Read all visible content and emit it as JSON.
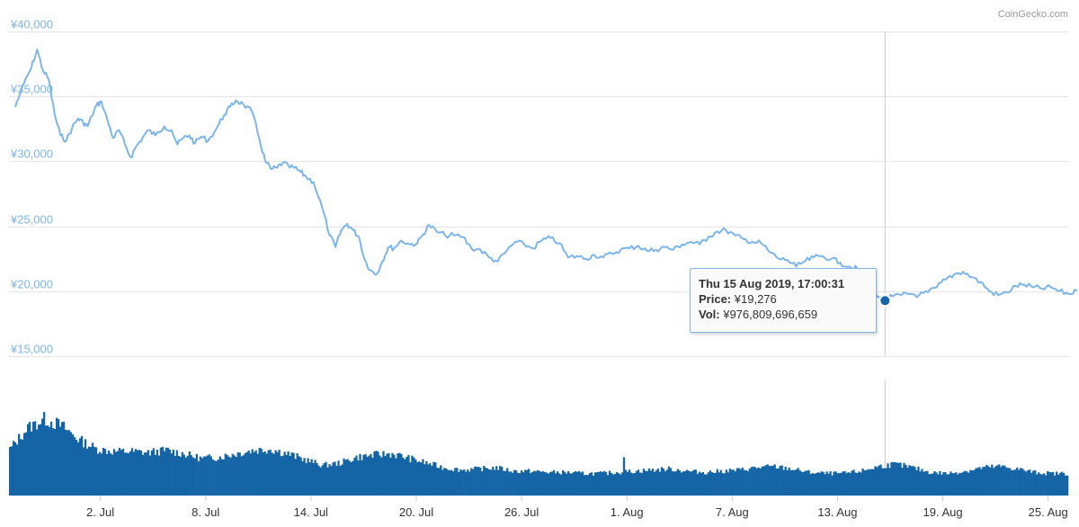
{
  "watermark": "CoinGecko.com",
  "tooltip": {
    "date": "Thu 15 Aug 2019, 17:00:31",
    "price_label": "Price:",
    "price_value": "¥19,276",
    "vol_label": "Vol:",
    "vol_value": "¥976,809,696,659"
  },
  "colors": {
    "price_line": "#7cb5ec",
    "volume": "#1565a6",
    "grid": "#e6e6e6",
    "axis_label": "#7cb5ec",
    "tick_label": "#333333",
    "crosshair": "#cccccc",
    "marker": "#1565a6"
  },
  "chart_data": [
    {
      "type": "line",
      "name": "price",
      "x_start": "27 Jun 2019",
      "x_end": "26 Aug 2019",
      "ylim": [
        15000,
        40000
      ],
      "yticks": [
        "¥15,000",
        "¥20,000",
        "¥25,000",
        "¥30,000",
        "¥35,000",
        "¥40,000"
      ],
      "ytick_values": [
        15000,
        20000,
        25000,
        30000,
        35000,
        40000
      ],
      "grid": true,
      "points": [
        [
          "27 Jun",
          34200
        ],
        [
          "27 Jun",
          36000
        ],
        [
          "28 Jun",
          37200
        ],
        [
          "28 Jun",
          38600
        ],
        [
          "28 Jun",
          37000
        ],
        [
          "29 Jun",
          36300
        ],
        [
          "29 Jun",
          33600
        ],
        [
          "29 Jun",
          32000
        ],
        [
          "30 Jun",
          31600
        ],
        [
          "30 Jun",
          32600
        ],
        [
          "30 Jun",
          33300
        ],
        [
          "1 Jul",
          33000
        ],
        [
          "1 Jul",
          32700
        ],
        [
          "1 Jul",
          33500
        ],
        [
          "1 Jul",
          34300
        ],
        [
          "2 Jul",
          34600
        ],
        [
          "2 Jul",
          33200
        ],
        [
          "2 Jul",
          31800
        ],
        [
          "3 Jul",
          32400
        ],
        [
          "3 Jul",
          31300
        ],
        [
          "3 Jul",
          30300
        ],
        [
          "4 Jul",
          31200
        ],
        [
          "4 Jul",
          31800
        ],
        [
          "4 Jul",
          32400
        ],
        [
          "5 Jul",
          32000
        ],
        [
          "5 Jul",
          32700
        ],
        [
          "6 Jul",
          32400
        ],
        [
          "6 Jul",
          31300
        ],
        [
          "6 Jul",
          31800
        ],
        [
          "7 Jul",
          32000
        ],
        [
          "7 Jul",
          31400
        ],
        [
          "7 Jul",
          31900
        ],
        [
          "8 Jul",
          31600
        ],
        [
          "8 Jul",
          32600
        ],
        [
          "9 Jul",
          33600
        ],
        [
          "9 Jul",
          34200
        ],
        [
          "9 Jul",
          34700
        ],
        [
          "10 Jul",
          34400
        ],
        [
          "10 Jul",
          33800
        ],
        [
          "11 Jul",
          31700
        ],
        [
          "11 Jul",
          30000
        ],
        [
          "11 Jul",
          29400
        ],
        [
          "12 Jul",
          29500
        ],
        [
          "12 Jul",
          29900
        ],
        [
          "12 Jul",
          29600
        ],
        [
          "13 Jul",
          29500
        ],
        [
          "13 Jul",
          29200
        ],
        [
          "13 Jul",
          28800
        ],
        [
          "14 Jul",
          28400
        ],
        [
          "14 Jul",
          26400
        ],
        [
          "15 Jul",
          24300
        ],
        [
          "15 Jul",
          23400
        ],
        [
          "15 Jul",
          24700
        ],
        [
          "16 Jul",
          25200
        ],
        [
          "16 Jul",
          24700
        ],
        [
          "16 Jul",
          24200
        ],
        [
          "17 Jul",
          22400
        ],
        [
          "17 Jul",
          21600
        ],
        [
          "17 Jul",
          21300
        ],
        [
          "18 Jul",
          22300
        ],
        [
          "18 Jul",
          23400
        ],
        [
          "18 Jul",
          23300
        ],
        [
          "19 Jul",
          23900
        ],
        [
          "19 Jul",
          23600
        ],
        [
          "20 Jul",
          23700
        ],
        [
          "20 Jul",
          24400
        ],
        [
          "20 Jul",
          25100
        ],
        [
          "21 Jul",
          24600
        ],
        [
          "21 Jul",
          24300
        ],
        [
          "22 Jul",
          24300
        ],
        [
          "22 Jul",
          24200
        ],
        [
          "23 Jul",
          23300
        ],
        [
          "23 Jul",
          23200
        ],
        [
          "24 Jul",
          22600
        ],
        [
          "24 Jul",
          22300
        ],
        [
          "25 Jul",
          23100
        ],
        [
          "25 Jul",
          23800
        ],
        [
          "26 Jul",
          23600
        ],
        [
          "26 Jul",
          23300
        ],
        [
          "27 Jul",
          23900
        ],
        [
          "27 Jul",
          24100
        ],
        [
          "28 Jul",
          23700
        ],
        [
          "28 Jul",
          22600
        ],
        [
          "29 Jul",
          22700
        ],
        [
          "29 Jul",
          22500
        ],
        [
          "30 Jul",
          22800
        ],
        [
          "30 Jul",
          22600
        ],
        [
          "31 Jul",
          22900
        ],
        [
          "31 Jul",
          23200
        ],
        [
          "1 Aug",
          23300
        ],
        [
          "1 Aug",
          23500
        ],
        [
          "2 Aug",
          23100
        ],
        [
          "2 Aug",
          23200
        ],
        [
          "3 Aug",
          23400
        ],
        [
          "3 Aug",
          23200
        ],
        [
          "4 Aug",
          23600
        ],
        [
          "4 Aug",
          23800
        ],
        [
          "5 Aug",
          23600
        ],
        [
          "5 Aug",
          24200
        ],
        [
          "6 Aug",
          24600
        ],
        [
          "6 Aug",
          24700
        ],
        [
          "7 Aug",
          24300
        ],
        [
          "7 Aug",
          24000
        ],
        [
          "8 Aug",
          23800
        ],
        [
          "8 Aug",
          23700
        ],
        [
          "9 Aug",
          23000
        ],
        [
          "9 Aug",
          22500
        ],
        [
          "10 Aug",
          22400
        ],
        [
          "10 Aug",
          21900
        ],
        [
          "11 Aug",
          22300
        ],
        [
          "11 Aug",
          22600
        ],
        [
          "12 Aug",
          22700
        ],
        [
          "12 Aug",
          22500
        ],
        [
          "13 Aug",
          22200
        ],
        [
          "13 Aug",
          21900
        ],
        [
          "14 Aug",
          21700
        ],
        [
          "14 Aug",
          20600
        ],
        [
          "15 Aug",
          19900
        ],
        [
          "15 Aug",
          19276
        ],
        [
          "16 Aug",
          19600
        ],
        [
          "16 Aug",
          19700
        ],
        [
          "17 Aug",
          19800
        ],
        [
          "17 Aug",
          19700
        ],
        [
          "18 Aug",
          19900
        ],
        [
          "18 Aug",
          20300
        ],
        [
          "19 Aug",
          20900
        ],
        [
          "19 Aug",
          21300
        ],
        [
          "20 Aug",
          21500
        ],
        [
          "20 Aug",
          21100
        ],
        [
          "21 Aug",
          20700
        ],
        [
          "21 Aug",
          20000
        ],
        [
          "22 Aug",
          19700
        ],
        [
          "22 Aug",
          19900
        ],
        [
          "23 Aug",
          20400
        ],
        [
          "23 Aug",
          20500
        ],
        [
          "24 Aug",
          20300
        ],
        [
          "24 Aug",
          20200
        ],
        [
          "25 Aug",
          20300
        ],
        [
          "25 Aug",
          20000
        ],
        [
          "26 Aug",
          19800
        ],
        [
          "26 Aug",
          20000
        ]
      ],
      "highlight": {
        "x": "15 Aug 2019, 17:00:31",
        "y": 19276
      }
    },
    {
      "type": "bar",
      "name": "volume",
      "xticks": [
        "2. Jul",
        "8. Jul",
        "14. Jul",
        "20. Jul",
        "26. Jul",
        "1. Aug",
        "7. Aug",
        "13. Aug",
        "19. Aug",
        "25. Aug"
      ],
      "daily_levels": [
        0.4,
        0.58,
        0.66,
        0.6,
        0.48,
        0.4,
        0.38,
        0.38,
        0.37,
        0.39,
        0.36,
        0.32,
        0.33,
        0.36,
        0.39,
        0.4,
        0.36,
        0.31,
        0.26,
        0.28,
        0.33,
        0.35,
        0.36,
        0.32,
        0.28,
        0.24,
        0.22,
        0.23,
        0.24,
        0.21,
        0.21,
        0.2,
        0.2,
        0.19,
        0.19,
        0.2,
        0.21,
        0.22,
        0.23,
        0.21,
        0.2,
        0.21,
        0.22,
        0.24,
        0.25,
        0.23,
        0.2,
        0.19,
        0.19,
        0.21,
        0.25,
        0.27,
        0.24,
        0.2,
        0.19,
        0.21,
        0.24,
        0.25,
        0.23,
        0.2,
        0.19
      ],
      "spike": {
        "date": "1 Aug",
        "level": 0.33
      }
    }
  ]
}
